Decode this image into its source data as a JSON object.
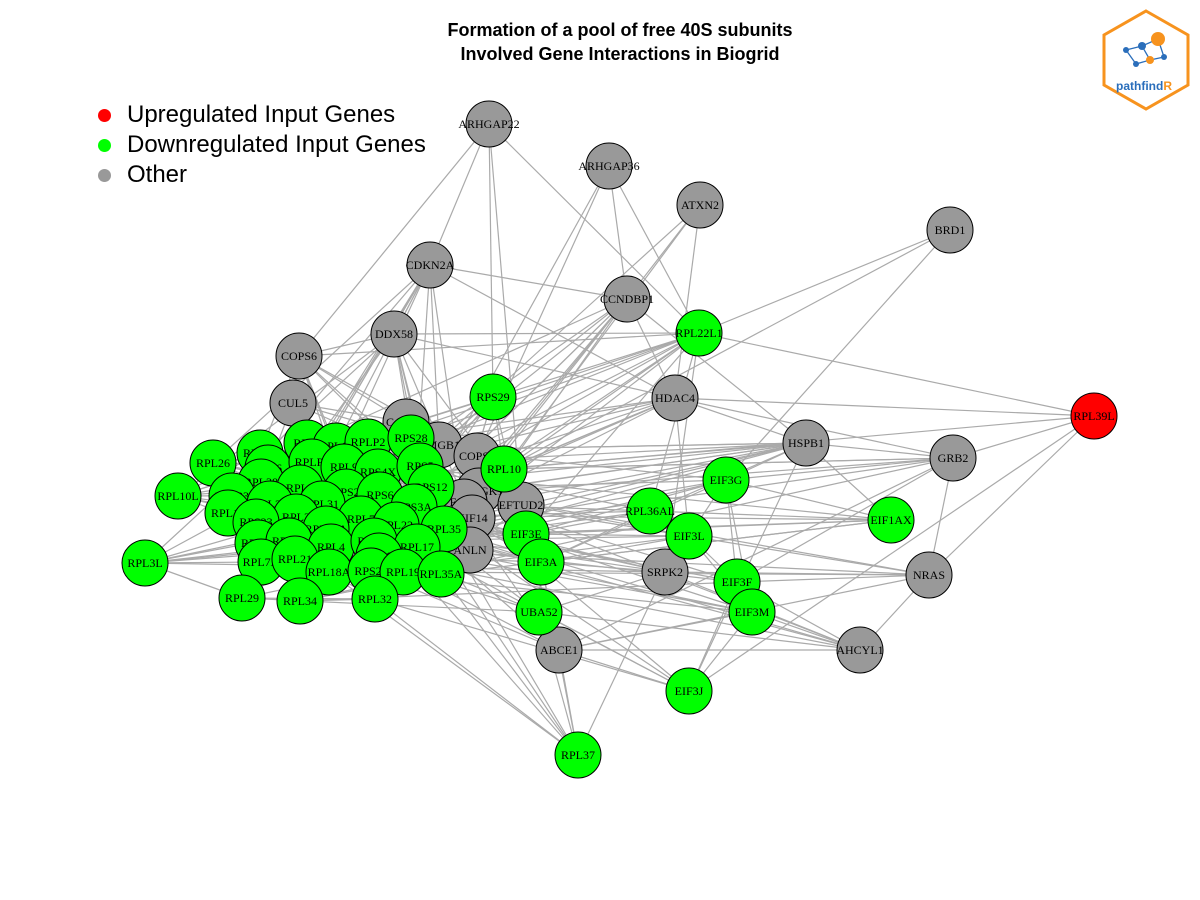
{
  "title_line1": "Formation of a pool of free 40S subunits",
  "title_line2": "Involved Gene Interactions in Biogrid",
  "legend": [
    {
      "label": "Upregulated Input Genes",
      "color": "#ff0000"
    },
    {
      "label": "Downregulated Input Genes",
      "color": "#00ff00"
    },
    {
      "label": "Other",
      "color": "#999999"
    }
  ],
  "logo_text": "pathfindR",
  "colors": {
    "up": "#ff0000",
    "down": "#00ff00",
    "other": "#999999",
    "edge": "#aaaaaa",
    "logo": "#f7931e",
    "logo_text": "#2a6ebb"
  },
  "nodes": [
    {
      "id": "ARHGAP22",
      "status": "other"
    },
    {
      "id": "ARHGAP36",
      "status": "other"
    },
    {
      "id": "ATXN2",
      "status": "other"
    },
    {
      "id": "BRD1",
      "status": "other"
    },
    {
      "id": "CDKN2A",
      "status": "other"
    },
    {
      "id": "CCNDBP1",
      "status": "other"
    },
    {
      "id": "RPL22L1",
      "status": "down"
    },
    {
      "id": "DDX58",
      "status": "other"
    },
    {
      "id": "COPS6",
      "status": "other"
    },
    {
      "id": "RPS29",
      "status": "down"
    },
    {
      "id": "HDAC4",
      "status": "other"
    },
    {
      "id": "RPL39L",
      "status": "up"
    },
    {
      "id": "CUL5",
      "status": "other"
    },
    {
      "id": "CAND1",
      "status": "other"
    },
    {
      "id": "HSPB1",
      "status": "other"
    },
    {
      "id": "GRB2",
      "status": "other"
    },
    {
      "id": "HMGB1",
      "status": "other"
    },
    {
      "id": "COPS5",
      "status": "other"
    },
    {
      "id": "DDRGK1",
      "status": "other"
    },
    {
      "id": "ECT2",
      "status": "other"
    },
    {
      "id": "EFTUD2",
      "status": "other"
    },
    {
      "id": "KIF14",
      "status": "other"
    },
    {
      "id": "ANLN",
      "status": "other"
    },
    {
      "id": "SRPK2",
      "status": "other"
    },
    {
      "id": "NRAS",
      "status": "other"
    },
    {
      "id": "ABCE1",
      "status": "other"
    },
    {
      "id": "AHCYL1",
      "status": "other"
    },
    {
      "id": "RPL26",
      "status": "down"
    },
    {
      "id": "RPL18",
      "status": "down"
    },
    {
      "id": "RPS7",
      "status": "down"
    },
    {
      "id": "RPL11",
      "status": "down"
    },
    {
      "id": "RPLP2",
      "status": "down"
    },
    {
      "id": "RPS28",
      "status": "down"
    },
    {
      "id": "RPL6",
      "status": "down"
    },
    {
      "id": "RPLP0",
      "status": "down"
    },
    {
      "id": "RPL9",
      "status": "down"
    },
    {
      "id": "RPS4X",
      "status": "down"
    },
    {
      "id": "RPS5",
      "status": "down"
    },
    {
      "id": "RPL10",
      "status": "down"
    },
    {
      "id": "RPL38",
      "status": "down"
    },
    {
      "id": "RPL10L",
      "status": "down"
    },
    {
      "id": "RPL23",
      "status": "down"
    },
    {
      "id": "RPL5",
      "status": "down"
    },
    {
      "id": "RPS2",
      "status": "down"
    },
    {
      "id": "RPS6",
      "status": "down"
    },
    {
      "id": "RPS12",
      "status": "down"
    },
    {
      "id": "RPL15",
      "status": "down"
    },
    {
      "id": "RPL24",
      "status": "down"
    },
    {
      "id": "RPL31",
      "status": "down"
    },
    {
      "id": "RPS3A",
      "status": "down"
    },
    {
      "id": "RPL3",
      "status": "down"
    },
    {
      "id": "RPS23",
      "status": "down"
    },
    {
      "id": "RPL7",
      "status": "down"
    },
    {
      "id": "RPL22",
      "status": "down"
    },
    {
      "id": "RPL35",
      "status": "down"
    },
    {
      "id": "RPL10A",
      "status": "down"
    },
    {
      "id": "EIF3G",
      "status": "down"
    },
    {
      "id": "RPL36AL",
      "status": "down"
    },
    {
      "id": "EIF1AX",
      "status": "down"
    },
    {
      "id": "EIF3E",
      "status": "down"
    },
    {
      "id": "EIF3L",
      "status": "down"
    },
    {
      "id": "RPL14",
      "status": "down"
    },
    {
      "id": "RPL36",
      "status": "down"
    },
    {
      "id": "RPL4",
      "status": "down"
    },
    {
      "id": "RPS25",
      "status": "down"
    },
    {
      "id": "RPL17",
      "status": "down"
    },
    {
      "id": "RPL3L",
      "status": "down"
    },
    {
      "id": "RPL7A",
      "status": "down"
    },
    {
      "id": "RPL21",
      "status": "down"
    },
    {
      "id": "RPS9",
      "status": "down"
    },
    {
      "id": "EIF3A",
      "status": "down"
    },
    {
      "id": "RPL18A",
      "status": "down"
    },
    {
      "id": "RPS24",
      "status": "down"
    },
    {
      "id": "RPL19",
      "status": "down"
    },
    {
      "id": "RPL35A",
      "status": "down"
    },
    {
      "id": "EIF3F",
      "status": "down"
    },
    {
      "id": "RPL29",
      "status": "down"
    },
    {
      "id": "RPL34",
      "status": "down"
    },
    {
      "id": "RPL32",
      "status": "down"
    },
    {
      "id": "UBA52",
      "status": "down"
    },
    {
      "id": "EIF3M",
      "status": "down"
    },
    {
      "id": "EIF3J",
      "status": "down"
    },
    {
      "id": "RPL37",
      "status": "down"
    }
  ]
}
